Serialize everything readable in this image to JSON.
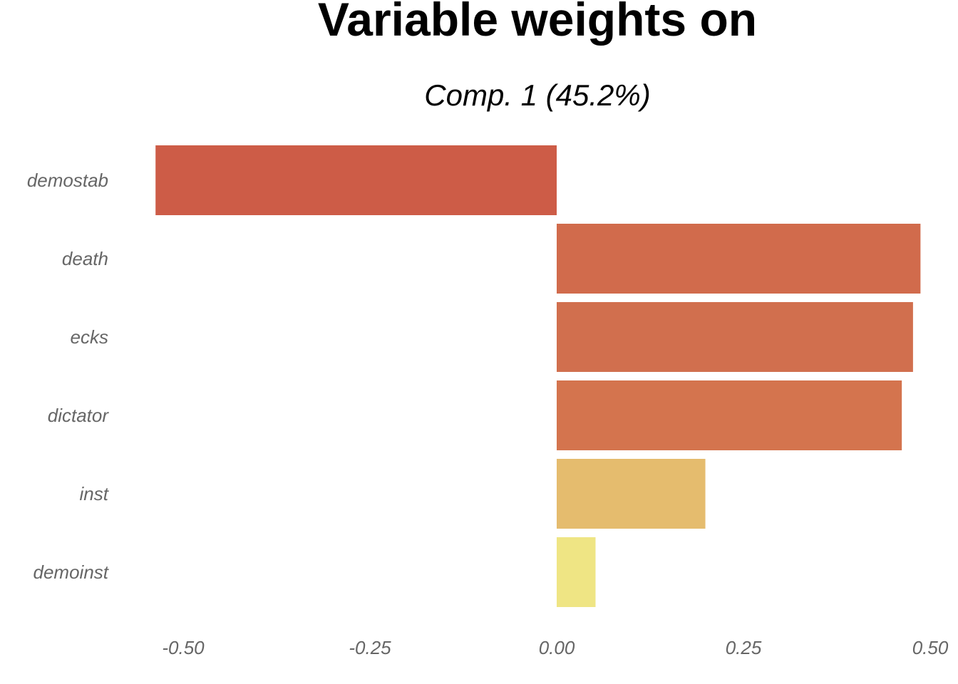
{
  "chart_data": {
    "type": "bar",
    "orientation": "horizontal",
    "title": "Variable weights on",
    "subtitle": "Comp. 1 (45.2%)",
    "xlabel": "",
    "ylabel": "",
    "xlim": [
      -0.6,
      0.5
    ],
    "x_ticks": [
      -0.5,
      -0.25,
      0.0,
      0.25,
      0.5
    ],
    "x_tick_labels": [
      "-0.50",
      "-0.25",
      "0.00",
      "0.25",
      "0.50"
    ],
    "grid": false,
    "legend": "none",
    "categories": [
      "demostab",
      "death",
      "ecks",
      "dictator",
      "inst",
      "demoinst"
    ],
    "values": [
      -0.537,
      0.487,
      0.477,
      0.462,
      0.199,
      0.052
    ],
    "colors": [
      "#CD5C47",
      "#D16B4C",
      "#D16F4E",
      "#D4744E",
      "#E5BC6E",
      "#EFE584"
    ]
  }
}
